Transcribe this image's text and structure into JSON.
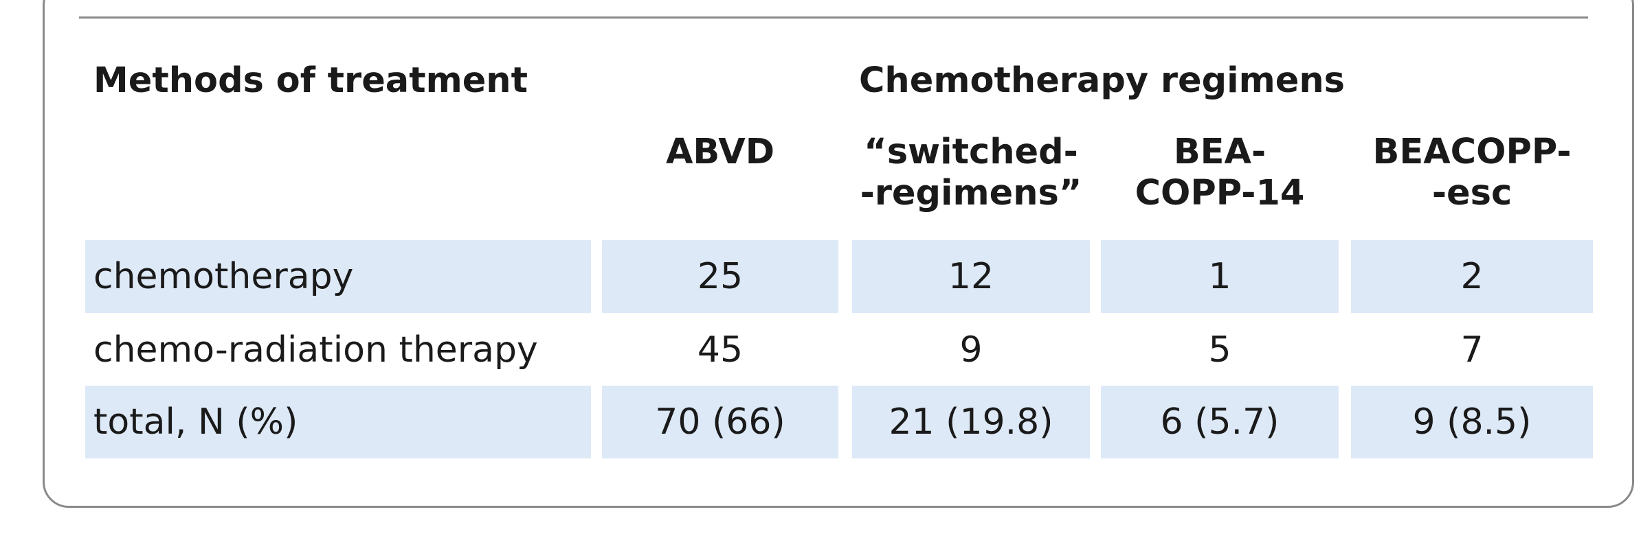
{
  "table": {
    "header": {
      "methods_label": "Methods of treatment",
      "group_label": "Chemotherapy regimens",
      "columns": [
        {
          "line1": "ABVD",
          "line2": ""
        },
        {
          "line1": "“switched-",
          "line2": "-regimens”"
        },
        {
          "line1": "BEA-",
          "line2": "COPP-14"
        },
        {
          "line1": "BEACOPP-",
          "line2": "-esc"
        }
      ]
    },
    "rows": [
      {
        "label": "chemotherapy",
        "values": [
          "25",
          "12",
          "1",
          "2"
        ],
        "shaded": true
      },
      {
        "label": "chemo-radiation therapy",
        "values": [
          "45",
          "9",
          "5",
          "7"
        ],
        "shaded": false
      },
      {
        "label": "total, N (%)",
        "values": [
          "70 (66)",
          "21 (19.8)",
          "6 (5.7)",
          "9 (8.5)"
        ],
        "shaded": true
      }
    ]
  }
}
